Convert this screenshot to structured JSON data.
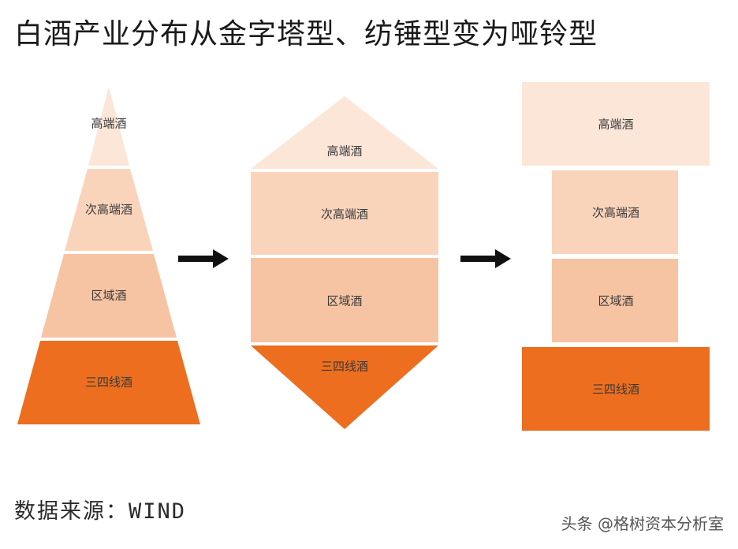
{
  "title": "白酒产业分布从金字塔型、纺锤型变为哑铃型",
  "source": "数据来源：WIND",
  "watermark": "头条 @格树资本分析室",
  "colors": {
    "top": "#fce6d8",
    "second": "#f9d4bb",
    "third": "#f7c4a3",
    "bottom": "#ec6e1e",
    "arrow": "#111111"
  },
  "pyramid": {
    "labels": [
      "高端酒",
      "次高端酒",
      "区域酒",
      "三四线酒"
    ]
  },
  "spindle": {
    "labels": [
      "高端酒",
      "次高端酒",
      "区域酒",
      "三四线酒"
    ]
  },
  "dumbbell": {
    "labels": [
      "高端酒",
      "次高端酒",
      "区域酒",
      "三四线酒"
    ]
  }
}
